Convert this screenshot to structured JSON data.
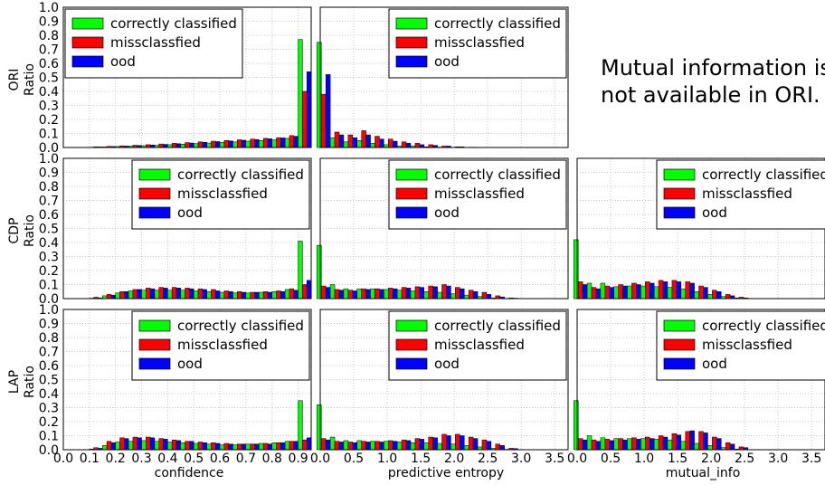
{
  "figure": {
    "note_lines": [
      "Mutual information is",
      "not available in ORI."
    ],
    "row_labels": [
      "ORI",
      "CDP",
      "LAP"
    ],
    "y_title": "Ratio",
    "x_titles": [
      "confidence",
      "predictive entropy",
      "mutual_info"
    ],
    "y_ticks": [
      "0.0",
      "0.1",
      "0.2",
      "0.3",
      "0.4",
      "0.5",
      "0.6",
      "0.7",
      "0.8",
      "0.9",
      "1.0"
    ],
    "x_ticks": [
      "0.0",
      "0.5",
      "1.0",
      "1.5",
      "2.0",
      "2.5",
      "3.0",
      "3.5"
    ],
    "x_ticks_conf": [
      "0.0",
      "0.1",
      "0.2",
      "0.3",
      "0.4",
      "0.5",
      "0.6",
      "0.7",
      "0.8",
      "0.9"
    ]
  },
  "chart_data": [
    {
      "type": "bar",
      "panel": "ORI confidence",
      "row": 0,
      "col": 0,
      "xlabel": "",
      "ylabel": "Ratio",
      "xlim": [
        0,
        0.95
      ],
      "ylim": [
        0,
        1.0
      ],
      "grid": true,
      "legend_loc": "upper left",
      "x": [
        0.125,
        0.175,
        0.225,
        0.275,
        0.325,
        0.375,
        0.425,
        0.475,
        0.525,
        0.575,
        0.625,
        0.675,
        0.725,
        0.775,
        0.825,
        0.875,
        0.925
      ],
      "series": [
        {
          "name": "correctly classified",
          "color": "#00ff00",
          "values": [
            0.002,
            0.004,
            0.007,
            0.01,
            0.013,
            0.016,
            0.02,
            0.024,
            0.028,
            0.032,
            0.036,
            0.04,
            0.045,
            0.05,
            0.055,
            0.065,
            0.77
          ]
        },
        {
          "name": "missclassfied",
          "color": "#ff0000",
          "values": [
            0.005,
            0.008,
            0.012,
            0.016,
            0.02,
            0.025,
            0.03,
            0.035,
            0.04,
            0.045,
            0.05,
            0.055,
            0.06,
            0.065,
            0.07,
            0.085,
            0.4
          ]
        },
        {
          "name": "ood",
          "color": "#0000ff",
          "values": [
            0.004,
            0.007,
            0.01,
            0.014,
            0.018,
            0.022,
            0.027,
            0.032,
            0.037,
            0.042,
            0.047,
            0.052,
            0.057,
            0.062,
            0.068,
            0.08,
            0.54
          ]
        }
      ]
    },
    {
      "type": "bar",
      "panel": "ORI predictive entropy",
      "row": 0,
      "col": 1,
      "xlabel": "",
      "ylabel": "",
      "xlim": [
        0,
        3.7
      ],
      "ylim": [
        0,
        1.0
      ],
      "grid": true,
      "legend_loc": "upper right",
      "x": [
        0.05,
        0.25,
        0.45,
        0.65,
        0.85,
        1.05,
        1.25,
        1.45,
        1.65,
        1.85,
        2.05,
        2.25
      ],
      "series": [
        {
          "name": "correctly classified",
          "color": "#00ff00",
          "values": [
            0.75,
            0.07,
            0.04,
            0.05,
            0.03,
            0.02,
            0.01,
            0.01,
            0.005,
            0.003,
            0.002,
            0.001
          ]
        },
        {
          "name": "missclassfied",
          "color": "#ff0000",
          "values": [
            0.38,
            0.11,
            0.09,
            0.12,
            0.08,
            0.06,
            0.04,
            0.03,
            0.02,
            0.01,
            0.005,
            0.002
          ]
        },
        {
          "name": "ood",
          "color": "#0000ff",
          "values": [
            0.52,
            0.09,
            0.07,
            0.09,
            0.06,
            0.045,
            0.03,
            0.02,
            0.015,
            0.01,
            0.005,
            0.002
          ]
        }
      ]
    },
    {
      "type": "bar",
      "panel": "CDP confidence",
      "row": 1,
      "col": 0,
      "xlabel": "",
      "ylabel": "Ratio",
      "xlim": [
        0,
        0.95
      ],
      "ylim": [
        0,
        1.0
      ],
      "grid": true,
      "legend_loc": "upper right",
      "x": [
        0.125,
        0.175,
        0.225,
        0.275,
        0.325,
        0.375,
        0.425,
        0.475,
        0.525,
        0.575,
        0.625,
        0.675,
        0.725,
        0.775,
        0.825,
        0.875,
        0.925
      ],
      "series": [
        {
          "name": "correctly classified",
          "color": "#00ff00",
          "values": [
            0.003,
            0.02,
            0.04,
            0.055,
            0.06,
            0.06,
            0.06,
            0.06,
            0.055,
            0.05,
            0.045,
            0.04,
            0.04,
            0.045,
            0.05,
            0.065,
            0.41
          ]
        },
        {
          "name": "missclassfied",
          "color": "#ff0000",
          "values": [
            0.01,
            0.03,
            0.05,
            0.065,
            0.075,
            0.08,
            0.08,
            0.075,
            0.07,
            0.065,
            0.055,
            0.05,
            0.045,
            0.05,
            0.055,
            0.07,
            0.1
          ]
        },
        {
          "name": "ood",
          "color": "#0000ff",
          "values": [
            0.005,
            0.025,
            0.05,
            0.065,
            0.07,
            0.075,
            0.075,
            0.07,
            0.065,
            0.055,
            0.05,
            0.045,
            0.045,
            0.045,
            0.05,
            0.06,
            0.13
          ]
        }
      ]
    },
    {
      "type": "bar",
      "panel": "CDP predictive entropy",
      "row": 1,
      "col": 1,
      "xlabel": "",
      "ylabel": "",
      "xlim": [
        0,
        3.7
      ],
      "ylim": [
        0,
        1.0
      ],
      "grid": true,
      "legend_loc": "upper right",
      "x": [
        0.05,
        0.25,
        0.45,
        0.65,
        0.85,
        1.05,
        1.25,
        1.45,
        1.65,
        1.85,
        2.05,
        2.25,
        2.45,
        2.65,
        2.85
      ],
      "series": [
        {
          "name": "correctly classified",
          "color": "#00ff00",
          "values": [
            0.38,
            0.1,
            0.07,
            0.07,
            0.07,
            0.065,
            0.06,
            0.055,
            0.05,
            0.045,
            0.035,
            0.025,
            0.015,
            0.005,
            0.002
          ]
        },
        {
          "name": "missclassfied",
          "color": "#ff0000",
          "values": [
            0.09,
            0.065,
            0.06,
            0.07,
            0.07,
            0.075,
            0.08,
            0.085,
            0.09,
            0.1,
            0.08,
            0.06,
            0.045,
            0.02,
            0.005
          ]
        },
        {
          "name": "ood",
          "color": "#0000ff",
          "values": [
            0.08,
            0.06,
            0.055,
            0.065,
            0.065,
            0.07,
            0.075,
            0.08,
            0.085,
            0.09,
            0.07,
            0.05,
            0.03,
            0.012,
            0.003
          ]
        }
      ]
    },
    {
      "type": "bar",
      "panel": "CDP mutual_info",
      "row": 1,
      "col": 2,
      "xlabel": "",
      "ylabel": "",
      "xlim": [
        0,
        3.7
      ],
      "ylim": [
        0,
        1.0
      ],
      "grid": true,
      "legend_loc": "upper right",
      "x": [
        0.05,
        0.25,
        0.45,
        0.65,
        0.85,
        1.05,
        1.25,
        1.45,
        1.65,
        1.85,
        2.05,
        2.25,
        2.45
      ],
      "series": [
        {
          "name": "correctly classified",
          "color": "#00ff00",
          "values": [
            0.42,
            0.11,
            0.11,
            0.085,
            0.09,
            0.09,
            0.085,
            0.08,
            0.07,
            0.05,
            0.03,
            0.015,
            0.005
          ]
        },
        {
          "name": "missclassfied",
          "color": "#ff0000",
          "values": [
            0.12,
            0.08,
            0.09,
            0.1,
            0.11,
            0.12,
            0.13,
            0.13,
            0.12,
            0.09,
            0.06,
            0.03,
            0.01
          ]
        },
        {
          "name": "ood",
          "color": "#0000ff",
          "values": [
            0.1,
            0.07,
            0.08,
            0.09,
            0.1,
            0.11,
            0.12,
            0.12,
            0.11,
            0.08,
            0.05,
            0.02,
            0.005
          ]
        }
      ]
    },
    {
      "type": "bar",
      "panel": "LAP confidence",
      "row": 2,
      "col": 0,
      "xlabel": "confidence",
      "ylabel": "Ratio",
      "xlim": [
        0,
        0.95
      ],
      "ylim": [
        0,
        1.0
      ],
      "grid": true,
      "legend_loc": "upper right",
      "x": [
        0.125,
        0.175,
        0.225,
        0.275,
        0.325,
        0.375,
        0.425,
        0.475,
        0.525,
        0.575,
        0.625,
        0.675,
        0.725,
        0.775,
        0.825,
        0.875,
        0.925
      ],
      "series": [
        {
          "name": "correctly classified",
          "color": "#00ff00",
          "values": [
            0.005,
            0.03,
            0.055,
            0.06,
            0.065,
            0.06,
            0.055,
            0.05,
            0.045,
            0.04,
            0.035,
            0.035,
            0.04,
            0.045,
            0.05,
            0.06,
            0.35
          ]
        },
        {
          "name": "missclassfied",
          "color": "#ff0000",
          "values": [
            0.015,
            0.06,
            0.085,
            0.09,
            0.09,
            0.08,
            0.07,
            0.06,
            0.055,
            0.05,
            0.045,
            0.04,
            0.04,
            0.045,
            0.05,
            0.06,
            0.07
          ]
        },
        {
          "name": "ood",
          "color": "#0000ff",
          "values": [
            0.01,
            0.05,
            0.08,
            0.085,
            0.085,
            0.075,
            0.065,
            0.06,
            0.05,
            0.045,
            0.04,
            0.04,
            0.04,
            0.04,
            0.05,
            0.06,
            0.085
          ]
        }
      ]
    },
    {
      "type": "bar",
      "panel": "LAP predictive entropy",
      "row": 2,
      "col": 1,
      "xlabel": "predictive entropy",
      "ylabel": "",
      "xlim": [
        0,
        3.7
      ],
      "ylim": [
        0,
        1.0
      ],
      "grid": true,
      "legend_loc": "upper right",
      "x": [
        0.05,
        0.25,
        0.45,
        0.65,
        0.85,
        1.05,
        1.25,
        1.45,
        1.65,
        1.85,
        2.05,
        2.25,
        2.45,
        2.65,
        2.85
      ],
      "series": [
        {
          "name": "correctly classified",
          "color": "#00ff00",
          "values": [
            0.32,
            0.09,
            0.065,
            0.065,
            0.06,
            0.06,
            0.055,
            0.05,
            0.05,
            0.045,
            0.04,
            0.03,
            0.02,
            0.01,
            0.003
          ]
        },
        {
          "name": "missclassfied",
          "color": "#ff0000",
          "values": [
            0.08,
            0.06,
            0.055,
            0.06,
            0.06,
            0.065,
            0.07,
            0.08,
            0.09,
            0.11,
            0.11,
            0.09,
            0.07,
            0.04,
            0.01
          ]
        },
        {
          "name": "ood",
          "color": "#0000ff",
          "values": [
            0.07,
            0.055,
            0.05,
            0.055,
            0.055,
            0.06,
            0.065,
            0.075,
            0.085,
            0.1,
            0.1,
            0.08,
            0.06,
            0.03,
            0.008
          ]
        }
      ]
    },
    {
      "type": "bar",
      "panel": "LAP mutual_info",
      "row": 2,
      "col": 2,
      "xlabel": "mutual_info",
      "ylabel": "",
      "xlim": [
        0,
        3.7
      ],
      "ylim": [
        0,
        1.0
      ],
      "grid": true,
      "legend_loc": "upper right",
      "x": [
        0.05,
        0.25,
        0.45,
        0.65,
        0.85,
        1.05,
        1.25,
        1.45,
        1.65,
        1.85,
        2.05,
        2.25,
        2.45
      ],
      "series": [
        {
          "name": "correctly classified",
          "color": "#00ff00",
          "values": [
            0.35,
            0.1,
            0.085,
            0.08,
            0.08,
            0.08,
            0.075,
            0.07,
            0.06,
            0.045,
            0.03,
            0.015,
            0.005
          ]
        },
        {
          "name": "missclassfied",
          "color": "#ff0000",
          "values": [
            0.08,
            0.07,
            0.075,
            0.08,
            0.085,
            0.09,
            0.1,
            0.115,
            0.13,
            0.13,
            0.09,
            0.05,
            0.02
          ]
        },
        {
          "name": "ood",
          "color": "#0000ff",
          "values": [
            0.07,
            0.06,
            0.065,
            0.07,
            0.075,
            0.08,
            0.09,
            0.105,
            0.135,
            0.12,
            0.08,
            0.04,
            0.015
          ]
        }
      ]
    }
  ]
}
